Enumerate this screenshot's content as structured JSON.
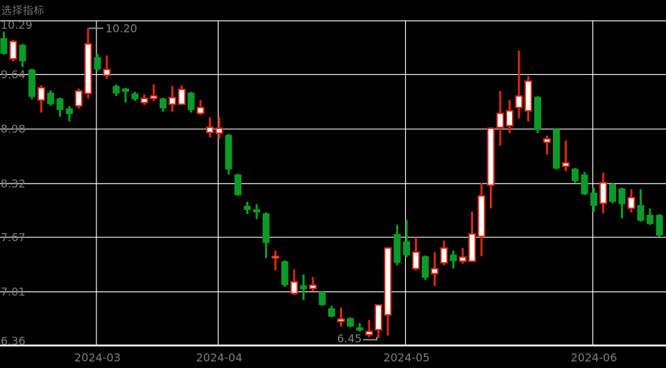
{
  "header": {
    "title": "选择指标"
  },
  "colors": {
    "background": "#000000",
    "up": "#dd2612",
    "up_fill": "#ffffff",
    "down": "#0a9b28",
    "grid": "#ffffff",
    "label": "#7d7d7d",
    "annotation_line": "#8c8c8c",
    "annotation_text": "#828282",
    "title_text": "#6f6f6f"
  },
  "chart_data": {
    "type": "candlestick",
    "style": "china-convention: hollow red = up day, solid green = down day",
    "title": "",
    "y_axis": {
      "tick_labels": [
        "10.29",
        "9.64",
        "8.98",
        "8.32",
        "7.67",
        "7.01",
        "6.36"
      ],
      "tick_values": [
        10.29,
        9.64,
        8.98,
        8.32,
        7.67,
        7.01,
        6.36
      ],
      "max": 10.29,
      "min": 6.36
    },
    "x_axis": {
      "ticks": [
        {
          "label": "2024-03",
          "candle_index": 10
        },
        {
          "label": "2024-04",
          "candle_index": 23
        },
        {
          "label": "2024-05",
          "candle_index": 43
        },
        {
          "label": "2024-06",
          "candle_index": 63
        }
      ]
    },
    "annotations": [
      {
        "text": "10.20",
        "candle_index": 9,
        "anchor": "high"
      },
      {
        "text": "6.45",
        "candle_index": 40,
        "anchor": "low"
      }
    ],
    "ohlc_format": [
      "open",
      "high",
      "low",
      "close"
    ],
    "candles": [
      [
        10.08,
        10.16,
        9.88,
        9.89
      ],
      [
        9.83,
        10.06,
        9.8,
        10.04
      ],
      [
        10.0,
        10.01,
        9.73,
        9.8
      ],
      [
        9.7,
        9.71,
        9.34,
        9.37
      ],
      [
        9.33,
        9.51,
        9.18,
        9.48
      ],
      [
        9.42,
        9.45,
        9.26,
        9.28
      ],
      [
        9.35,
        9.36,
        9.13,
        9.21
      ],
      [
        9.23,
        9.26,
        9.07,
        9.16
      ],
      [
        9.26,
        9.47,
        9.23,
        9.44
      ],
      [
        9.41,
        10.2,
        9.35,
        10.01
      ],
      [
        9.85,
        9.89,
        9.68,
        9.7
      ],
      [
        9.63,
        9.87,
        9.59,
        9.7
      ],
      [
        9.5,
        9.52,
        9.38,
        9.41
      ],
      [
        9.47,
        9.48,
        9.3,
        9.43
      ],
      [
        9.41,
        9.43,
        9.32,
        9.34
      ],
      [
        9.3,
        9.4,
        9.27,
        9.35
      ],
      [
        9.35,
        9.52,
        9.32,
        9.38
      ],
      [
        9.35,
        9.36,
        9.19,
        9.23
      ],
      [
        9.28,
        9.5,
        9.19,
        9.36
      ],
      [
        9.28,
        9.51,
        9.27,
        9.46
      ],
      [
        9.42,
        9.43,
        9.18,
        9.21
      ],
      [
        9.17,
        9.33,
        9.15,
        9.24
      ],
      [
        8.94,
        9.12,
        8.88,
        9.0
      ],
      [
        8.93,
        9.13,
        8.86,
        8.99
      ],
      [
        8.91,
        8.92,
        8.43,
        8.49
      ],
      [
        8.43,
        8.44,
        8.17,
        8.18
      ],
      [
        8.05,
        8.1,
        7.95,
        8.0
      ],
      [
        8.01,
        8.07,
        7.89,
        7.97
      ],
      [
        7.96,
        7.97,
        7.42,
        7.6
      ],
      [
        7.42,
        7.51,
        7.27,
        7.44
      ],
      [
        7.38,
        7.39,
        7.07,
        7.09
      ],
      [
        6.99,
        7.28,
        6.97,
        7.13
      ],
      [
        7.09,
        7.22,
        6.91,
        7.04
      ],
      [
        7.05,
        7.19,
        7.02,
        7.09
      ],
      [
        7.01,
        7.02,
        6.84,
        6.85
      ],
      [
        6.81,
        6.84,
        6.7,
        6.71
      ],
      [
        6.65,
        6.82,
        6.59,
        6.68
      ],
      [
        6.69,
        6.7,
        6.58,
        6.59
      ],
      [
        6.58,
        6.63,
        6.53,
        6.54
      ],
      [
        6.49,
        6.67,
        6.46,
        6.53
      ],
      [
        6.55,
        6.86,
        6.45,
        6.85
      ],
      [
        6.73,
        7.55,
        6.48,
        7.54
      ],
      [
        7.71,
        7.82,
        7.33,
        7.36
      ],
      [
        7.62,
        7.88,
        7.43,
        7.45
      ],
      [
        7.29,
        7.67,
        7.27,
        7.49
      ],
      [
        7.44,
        7.45,
        7.15,
        7.18
      ],
      [
        7.23,
        7.49,
        7.08,
        7.29
      ],
      [
        7.36,
        7.63,
        7.33,
        7.54
      ],
      [
        7.46,
        7.51,
        7.29,
        7.38
      ],
      [
        7.38,
        7.54,
        7.35,
        7.43
      ],
      [
        7.38,
        7.98,
        7.37,
        7.71
      ],
      [
        7.68,
        8.33,
        7.44,
        8.17
      ],
      [
        8.3,
        9.0,
        8.02,
        8.99
      ],
      [
        9.0,
        9.44,
        8.78,
        9.17
      ],
      [
        9.02,
        9.33,
        8.93,
        9.2
      ],
      [
        9.24,
        9.93,
        9.11,
        9.38
      ],
      [
        9.2,
        9.62,
        9.07,
        9.56
      ],
      [
        9.37,
        9.38,
        8.93,
        8.97
      ],
      [
        8.82,
        8.9,
        8.67,
        8.86
      ],
      [
        8.98,
        8.99,
        8.49,
        8.5
      ],
      [
        8.53,
        8.84,
        8.47,
        8.57
      ],
      [
        8.5,
        8.51,
        8.33,
        8.35
      ],
      [
        8.43,
        8.46,
        8.18,
        8.19
      ],
      [
        8.21,
        8.27,
        7.98,
        8.05
      ],
      [
        8.08,
        8.45,
        7.96,
        8.33
      ],
      [
        8.31,
        8.33,
        8.08,
        8.1
      ],
      [
        8.26,
        8.27,
        7.9,
        8.07
      ],
      [
        8.02,
        8.25,
        7.97,
        8.15
      ],
      [
        8.06,
        8.25,
        7.86,
        7.87
      ],
      [
        7.94,
        8.02,
        7.82,
        7.83
      ],
      [
        7.94,
        7.95,
        7.68,
        7.69
      ]
    ]
  }
}
